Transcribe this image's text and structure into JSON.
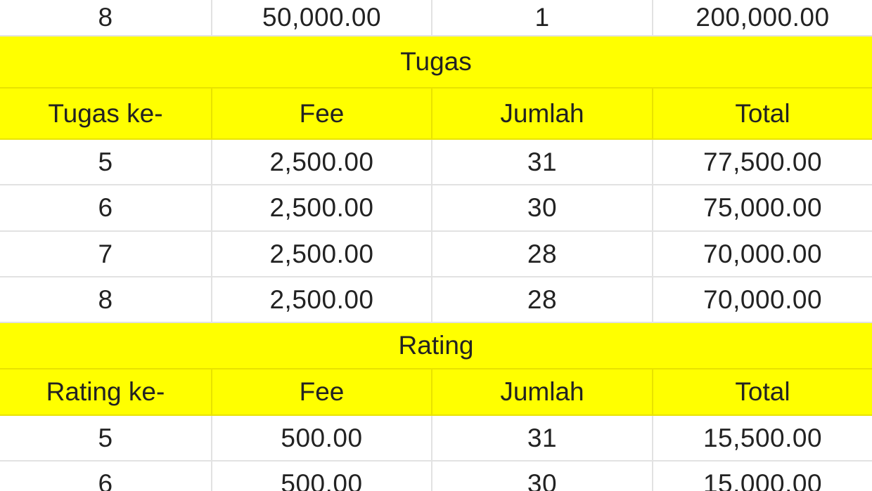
{
  "top_row": [
    "8",
    "50,000.00",
    "1",
    "200,000.00"
  ],
  "tugas": {
    "title": "Tugas",
    "headers": [
      "Tugas ke-",
      "Fee",
      "Jumlah",
      "Total"
    ],
    "rows": [
      [
        "5",
        "2,500.00",
        "31",
        "77,500.00"
      ],
      [
        "6",
        "2,500.00",
        "30",
        "75,000.00"
      ],
      [
        "7",
        "2,500.00",
        "28",
        "70,000.00"
      ],
      [
        "8",
        "2,500.00",
        "28",
        "70,000.00"
      ]
    ]
  },
  "rating": {
    "title": "Rating",
    "headers": [
      "Rating ke-",
      "Fee",
      "Jumlah",
      "Total"
    ],
    "rows": [
      [
        "5",
        "500.00",
        "31",
        "15,500.00"
      ],
      [
        "6",
        "500.00",
        "30",
        "15,000.00"
      ]
    ]
  },
  "colors": {
    "highlight": "#ffff00",
    "gridline": "#e2e2e2",
    "text": "#222222"
  }
}
